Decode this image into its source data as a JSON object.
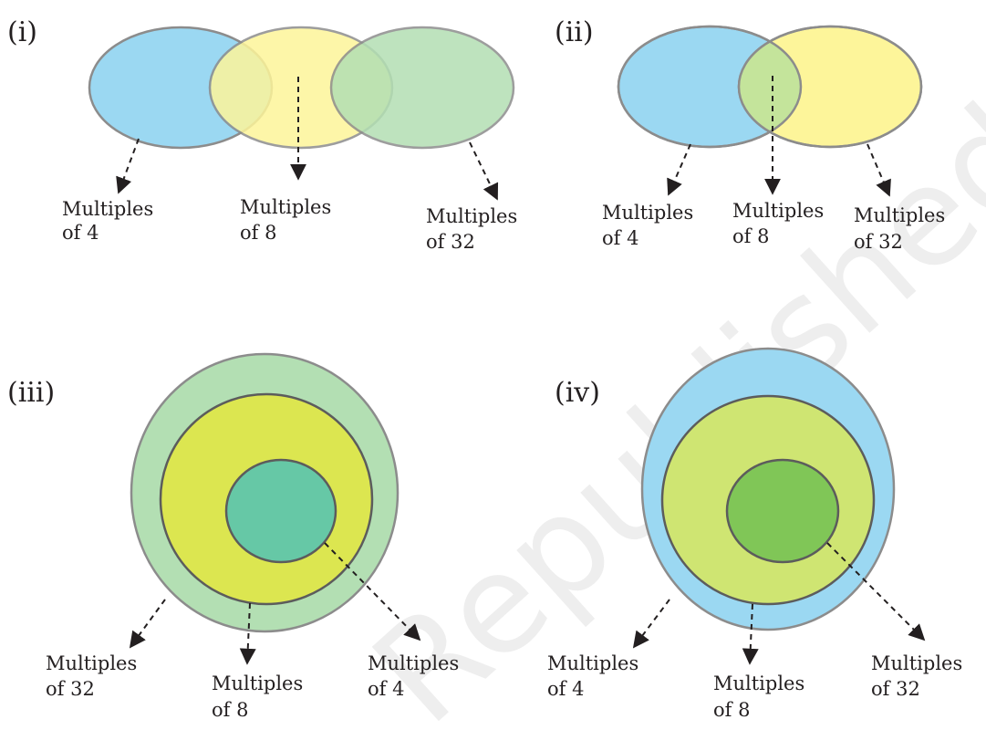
{
  "watermark": "Republished",
  "panels": [
    {
      "id": "i",
      "label": "(i)",
      "sets": [
        {
          "line1": "Multiples",
          "line2": "of 4",
          "color": "#9bd8f2"
        },
        {
          "line1": "Multiples",
          "line2": "of 8",
          "color": "#fdf59a"
        },
        {
          "line1": "Multiples",
          "line2": "of 32",
          "color": "#b3dfb3"
        }
      ]
    },
    {
      "id": "ii",
      "label": "(ii)",
      "sets": [
        {
          "line1": "Multiples",
          "line2": "of 4",
          "color": "#9bd8f2"
        },
        {
          "line1": "Multiples",
          "line2": "of 8",
          "color": "#c4e49b"
        },
        {
          "line1": "Multiples",
          "line2": "of 32",
          "color": "#fdf59a"
        }
      ]
    },
    {
      "id": "iii",
      "label": "(iii)",
      "sets": [
        {
          "line1": "Multiples",
          "line2": "of 32",
          "color": "#b3dfb3"
        },
        {
          "line1": "Multiples",
          "line2": "of 8",
          "color": "#dce650"
        },
        {
          "line1": "Multiples",
          "line2": "of 4",
          "color": "#66c8a6"
        }
      ]
    },
    {
      "id": "iv",
      "label": "(iv)",
      "sets": [
        {
          "line1": "Multiples",
          "line2": "of 4",
          "color": "#9bd8f2"
        },
        {
          "line1": "Multiples",
          "line2": "of 8",
          "color": "#cfe572"
        },
        {
          "line1": "Multiples",
          "line2": "of 32",
          "color": "#80c657"
        }
      ]
    }
  ]
}
